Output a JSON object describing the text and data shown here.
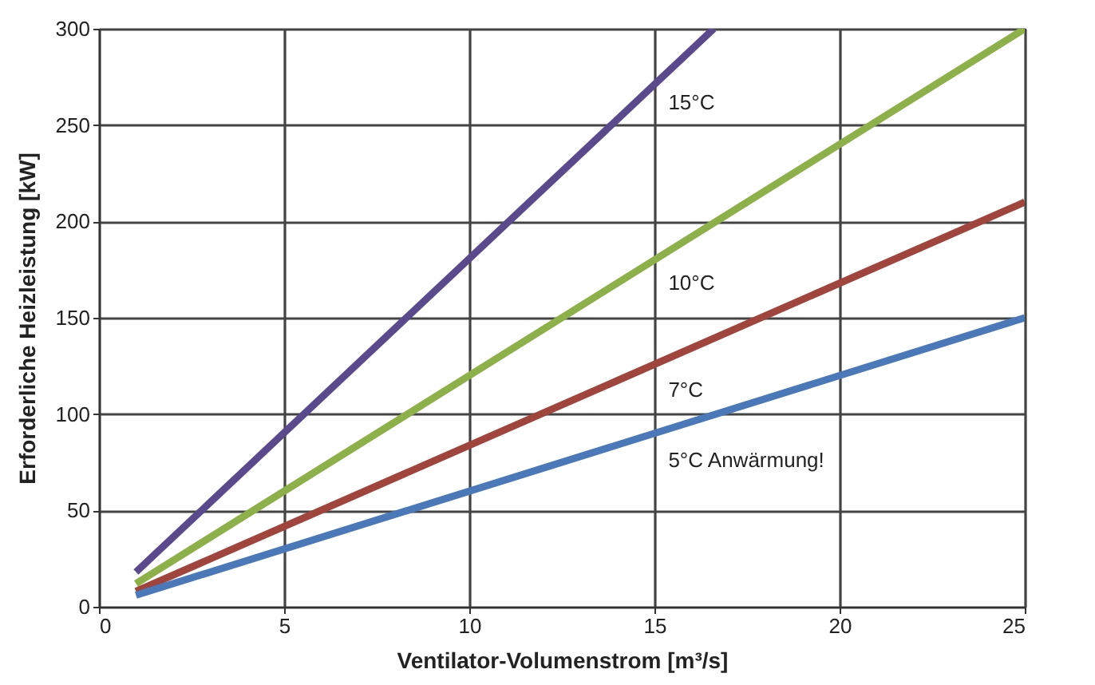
{
  "chart_data": {
    "type": "line",
    "xlabel": "Ventilator-Volumenstrom [m³/s]",
    "ylabel": "Erforderliche  Heizleistung [kW]",
    "xlim": [
      0,
      25
    ],
    "ylim": [
      0,
      300
    ],
    "xticks": [
      0,
      5,
      10,
      15,
      20,
      25
    ],
    "yticks": [
      0,
      50,
      100,
      150,
      200,
      250,
      300
    ],
    "grid": true,
    "legend": false,
    "marker": "none",
    "line_style": "solid",
    "series": [
      {
        "name": "15°C",
        "color": "#5b4a8b",
        "x": [
          1,
          16.6
        ],
        "values": [
          18,
          300
        ]
      },
      {
        "name": "10°C",
        "color": "#8db04a",
        "x": [
          1,
          25
        ],
        "values": [
          12,
          300
        ]
      },
      {
        "name": "7°C",
        "color": "#a0443e",
        "x": [
          1,
          25
        ],
        "values": [
          8,
          210
        ]
      },
      {
        "name": "5°C  Anwärmung!",
        "color": "#4a78b8",
        "x": [
          1,
          25
        ],
        "values": [
          6,
          150
        ]
      }
    ]
  }
}
